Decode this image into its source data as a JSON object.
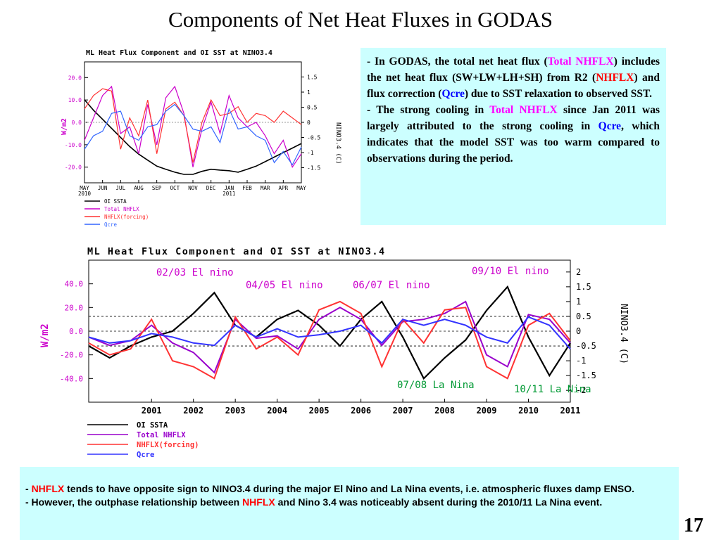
{
  "slide": {
    "title": "Components of Net Heat Fluxes in GODAS",
    "page_number": "17"
  },
  "box1": {
    "b1": {
      "p1": "- In GODAS, the total net heat flux (",
      "h1": "Total NHFLX",
      "p2": ") includes the net heat flux (SW+LW+LH+SH) from R2 (",
      "h2": "NHFLX",
      "p3": ") and flux correction (",
      "h3": "Qcre",
      "p4": ") due to SST relaxation to observed SST."
    },
    "b2": {
      "p1": "- The strong cooling in ",
      "h1": "Total NHFLX",
      "p2": " since Jan 2011 was largely attributed to the strong cooling in ",
      "h2": "Qcre",
      "p3": ", which indicates that the model SST was too warm compared to observations during the period."
    }
  },
  "box2": {
    "b1": {
      "p1": "- ",
      "h1": "NHFLX",
      "p2": " tends to have opposite sign to NINO3.4 during the major El Nino and La Nina events, i.e. atmospheric fluxes damp ENSO."
    },
    "b2": {
      "p1": "- However, the outphase relationship between ",
      "h1": "NHFLX",
      "p2": " and Nino 3.4 was noticeably absent during the 2010/11 La Nina event."
    }
  },
  "chart_data": [
    {
      "type": "line",
      "title": "ML Heat Flux Component and OI SST at NINO3.4",
      "ylabel": "W/m2",
      "y2label": "NINO3.4 (C)",
      "x_ticks": [
        "MAY\n2010",
        "JUN",
        "JUL",
        "AUG",
        "SEP",
        "OCT",
        "NOV",
        "DEC",
        "JAN\n2011",
        "FEB",
        "MAR",
        "APR",
        "MAY"
      ],
      "ylim": [
        -27,
        27
      ],
      "y_ticks": [
        "20.0",
        "10.0",
        "0.0",
        "-10.0",
        "-20.0"
      ],
      "y2lim": [
        -2,
        2
      ],
      "y2_ticks": [
        "1.5",
        "1",
        "0.5",
        "0",
        "-0.5",
        "-1",
        "-1.5"
      ],
      "x": [
        0,
        0.5,
        1,
        1.5,
        2,
        2.5,
        3,
        3.5,
        4,
        4.5,
        5,
        5.5,
        6,
        6.5,
        7,
        7.5,
        8,
        8.5,
        9,
        9.5,
        10,
        10.5,
        11,
        11.5,
        12
      ],
      "series": [
        {
          "name": "OI SSTA",
          "axis": "y2",
          "color": "#000000",
          "values": [
            0.75,
            0.4,
            0.1,
            -0.2,
            -0.5,
            -0.8,
            -1.05,
            -1.25,
            -1.45,
            -1.55,
            -1.65,
            -1.72,
            -1.72,
            -1.62,
            -1.55,
            -1.58,
            -1.6,
            -1.65,
            -1.55,
            -1.45,
            -1.3,
            -1.15,
            -1.0,
            -0.85,
            -0.7
          ]
        },
        {
          "name": "Total NHFLX",
          "axis": "y",
          "color": "#cc00cc",
          "values": [
            -8,
            2,
            12,
            16,
            -5,
            -2,
            -14,
            8,
            -10,
            11,
            16,
            4,
            -20,
            -3,
            9,
            -5,
            12,
            2,
            -2,
            0,
            -6,
            -14,
            -8,
            -20,
            -14
          ]
        },
        {
          "name": "NHFLX(forcing)",
          "axis": "y",
          "color": "#ff3333",
          "values": [
            6,
            12,
            15,
            14,
            -12,
            2,
            -6,
            10,
            -14,
            6,
            9,
            3,
            -18,
            0,
            10,
            3,
            4,
            7,
            0,
            4,
            3,
            0,
            5,
            2,
            -1
          ]
        },
        {
          "name": "Qcre",
          "axis": "y",
          "color": "#3366ff",
          "values": [
            -12,
            -6,
            -4,
            4,
            5,
            -6,
            -8,
            -2,
            -1,
            5,
            8,
            3,
            -3,
            -4,
            -2,
            -9,
            6,
            -3,
            -2,
            -6,
            -8,
            -18,
            -13,
            -19,
            -11
          ]
        }
      ]
    },
    {
      "type": "line",
      "title": "ML Heat Flux Component and OI SST at NINO3.4",
      "ylabel": "W/m2",
      "y2label": "NINO3.4 (C)",
      "x_ticks": [
        "2001",
        "2002",
        "2003",
        "2004",
        "2005",
        "2006",
        "2007",
        "2008",
        "2009",
        "2010",
        "2011"
      ],
      "xlim": [
        2000.0,
        2011.5
      ],
      "ylim": [
        -60,
        60
      ],
      "y_ticks": [
        "40.0",
        "20.0",
        "0.0",
        "-20.0",
        "-40.0"
      ],
      "y2lim": [
        -2.4,
        2.4
      ],
      "y2_ticks": [
        "2",
        "1.5",
        "1",
        "0.5",
        "0",
        "-0.5",
        "-1",
        "-1.5",
        "-2"
      ],
      "dashed_y2": [
        0.5,
        0,
        -0.5
      ],
      "annotations": [
        {
          "text": "02/03 El nino",
          "color": "#cc00cc"
        },
        {
          "text": "04/05 El nino",
          "color": "#cc00cc"
        },
        {
          "text": "06/07 El nino",
          "color": "#cc00cc"
        },
        {
          "text": "09/10 El nino",
          "color": "#cc00cc"
        },
        {
          "text": "07/08 La Nina",
          "color": "#009933"
        },
        {
          "text": "10/11 La Nina",
          "color": "#009933"
        }
      ],
      "x": [
        2000.0,
        2000.5,
        2001.0,
        2001.5,
        2002.0,
        2002.5,
        2003.0,
        2003.5,
        2004.0,
        2004.5,
        2005.0,
        2005.5,
        2006.0,
        2006.5,
        2007.0,
        2007.5,
        2008.0,
        2008.5,
        2009.0,
        2009.5,
        2010.0,
        2010.5,
        2011.0,
        2011.5
      ],
      "series": [
        {
          "name": "OI SSTA",
          "axis": "y2",
          "color": "#000000",
          "values": [
            -0.5,
            -0.9,
            -0.5,
            -0.2,
            0.0,
            0.6,
            1.3,
            0.2,
            -0.2,
            0.4,
            0.7,
            0.2,
            -0.5,
            0.4,
            1.0,
            -0.2,
            -1.6,
            -0.9,
            -0.3,
            0.7,
            1.5,
            -0.2,
            -1.5,
            -0.4
          ]
        },
        {
          "name": "Total NHFLX",
          "axis": "y",
          "color": "#9900cc",
          "values": [
            -5,
            -12,
            -8,
            5,
            -10,
            -18,
            -35,
            10,
            -6,
            -4,
            -15,
            10,
            20,
            10,
            -12,
            8,
            10,
            15,
            25,
            -20,
            -30,
            14,
            10,
            -10
          ]
        },
        {
          "name": "NHFLX(forcing)",
          "axis": "y",
          "color": "#ff3333",
          "values": [
            -10,
            -20,
            -15,
            10,
            -25,
            -30,
            -40,
            12,
            -15,
            -5,
            -20,
            18,
            25,
            15,
            -30,
            10,
            -10,
            18,
            20,
            -30,
            -40,
            5,
            15,
            -8
          ]
        },
        {
          "name": "Qcre",
          "axis": "y",
          "color": "#3333ff",
          "values": [
            -5,
            -10,
            -8,
            -2,
            -5,
            -10,
            -12,
            5,
            -5,
            2,
            -5,
            -3,
            0,
            5,
            -10,
            10,
            5,
            10,
            5,
            -5,
            -10,
            12,
            5,
            -15
          ]
        }
      ]
    }
  ],
  "chart_legends": [
    [
      "OI SSTA",
      "Total NHFLX",
      "NHFLX(forcing)",
      "Qcre"
    ],
    [
      "OI SSTA",
      "Total NHFLX",
      "NHFLX(forcing)",
      "Qcre"
    ]
  ]
}
